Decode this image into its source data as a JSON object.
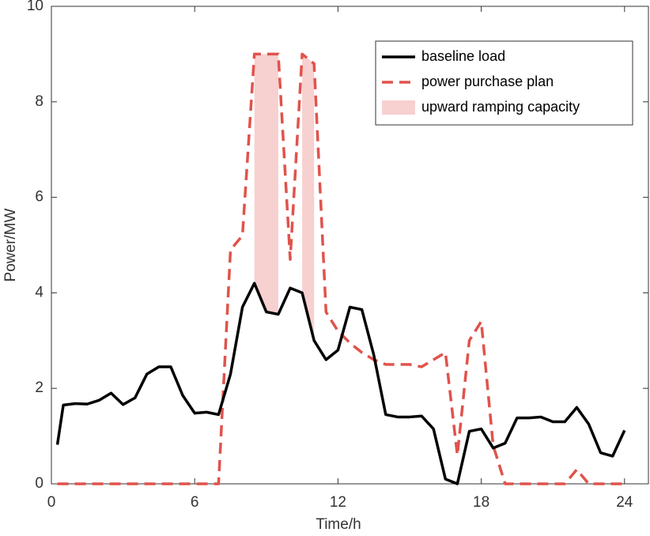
{
  "chart_data": {
    "type": "line",
    "xlabel": "Time/h",
    "ylabel": "Power/MW",
    "x": [
      0.25,
      0.5,
      1.0,
      1.5,
      2.0,
      2.5,
      3.0,
      3.5,
      4.0,
      4.5,
      5.0,
      5.5,
      6.0,
      6.5,
      7.0,
      7.5,
      8.0,
      8.5,
      9.0,
      9.5,
      10.0,
      10.5,
      11.0,
      11.5,
      12.0,
      12.5,
      13.0,
      13.5,
      14.0,
      14.5,
      15.0,
      15.5,
      16.0,
      16.5,
      17.0,
      17.5,
      18.0,
      18.5,
      19.0,
      19.5,
      20.0,
      20.5,
      21.0,
      21.5,
      22.0,
      22.5,
      23.0,
      23.5,
      24.0
    ],
    "series": [
      {
        "name": "baseline load",
        "color": "#000000",
        "dash": false,
        "values": [
          0.82,
          1.65,
          1.68,
          1.67,
          1.75,
          1.9,
          1.66,
          1.8,
          2.3,
          2.45,
          2.45,
          1.85,
          1.48,
          1.5,
          1.45,
          2.3,
          3.7,
          4.2,
          3.6,
          3.55,
          4.1,
          4.0,
          3.0,
          2.6,
          2.8,
          3.7,
          3.65,
          2.7,
          1.45,
          1.4,
          1.4,
          1.42,
          1.15,
          0.1,
          0,
          1.1,
          1.15,
          0.75,
          0.85,
          1.38,
          1.38,
          1.4,
          1.3,
          1.3,
          1.6,
          1.25,
          0.65,
          0.58,
          1.12
        ]
      },
      {
        "name": "power purchase plan",
        "color": "#e0534c",
        "dash": true,
        "values": [
          0,
          0,
          0,
          0,
          0,
          0,
          0,
          0,
          0,
          0,
          0,
          0,
          0,
          0,
          0,
          4.9,
          5.2,
          9.0,
          9.0,
          9.0,
          4.7,
          9.0,
          8.8,
          3.6,
          3.2,
          2.95,
          2.75,
          2.6,
          2.5,
          2.5,
          2.5,
          2.45,
          2.6,
          2.75,
          0.6,
          3.0,
          3.4,
          0.8,
          0,
          0,
          0,
          0,
          0,
          0,
          0.3,
          0,
          0,
          0,
          0
        ]
      }
    ],
    "area": {
      "name": "upward ramping capacity",
      "color": "#f7d0d0",
      "x": [
        8.5,
        9.0,
        9.5,
        10.0,
        10.5,
        11.0
      ],
      "upper": [
        9.0,
        9.0,
        9.0,
        null,
        9.0,
        8.8
      ],
      "lower": [
        4.2,
        3.6,
        3.55,
        null,
        4.0,
        3.0
      ]
    },
    "xlim": [
      0,
      25
    ],
    "xticks": [
      0,
      6,
      12,
      18,
      24
    ],
    "ylim": [
      0,
      10
    ],
    "yticks": [
      0,
      2,
      4,
      6,
      8,
      10
    ],
    "legend": "upper right"
  }
}
